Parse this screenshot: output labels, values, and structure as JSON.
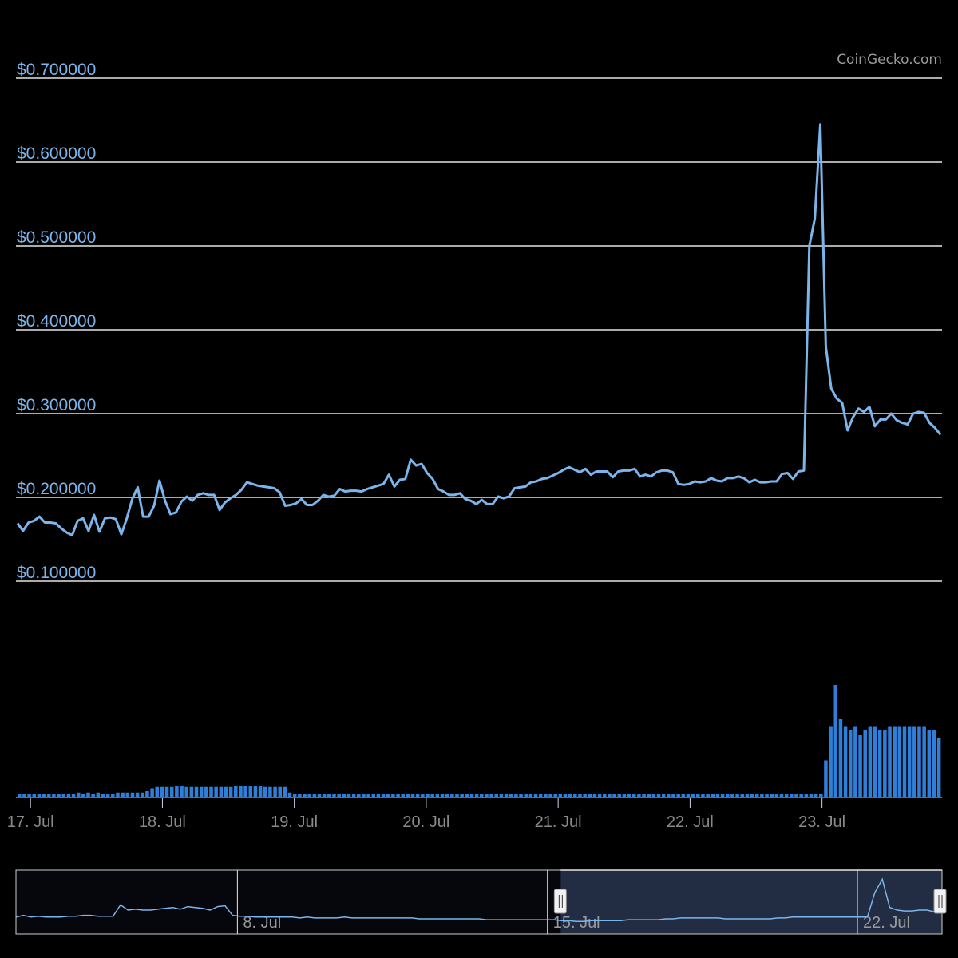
{
  "credit": "CoinGecko.com",
  "chart_data": {
    "type": "line",
    "subtype": "price-with-volume-and-navigator",
    "y_axis": {
      "ticks": [
        "$0.100000",
        "$0.200000",
        "$0.300000",
        "$0.400000",
        "$0.500000",
        "$0.600000",
        "$0.700000"
      ],
      "tick_values": [
        0.1,
        0.2,
        0.3,
        0.4,
        0.5,
        0.6,
        0.7
      ],
      "ylim": [
        0.1,
        0.7
      ],
      "grid": true
    },
    "x_axis": {
      "ticks": [
        "17. Jul",
        "18. Jul",
        "19. Jul",
        "20. Jul",
        "21. Jul",
        "22. Jul",
        "23. Jul"
      ],
      "tick_positions_days": [
        0,
        1,
        2,
        3,
        4,
        5,
        6
      ],
      "xlim_days": [
        -0.11,
        6.91
      ]
    },
    "price_series": {
      "name": "",
      "color": "#7cb5ec",
      "step_days": 0.04166,
      "start_day": -0.11,
      "values": [
        0.169,
        0.16,
        0.17,
        0.172,
        0.177,
        0.17,
        0.17,
        0.169,
        0.163,
        0.158,
        0.155,
        0.172,
        0.175,
        0.16,
        0.179,
        0.159,
        0.175,
        0.176,
        0.174,
        0.156,
        0.175,
        0.198,
        0.212,
        0.177,
        0.177,
        0.19,
        0.22,
        0.196,
        0.18,
        0.182,
        0.195,
        0.201,
        0.196,
        0.203,
        0.205,
        0.203,
        0.203,
        0.185,
        0.194,
        0.199,
        0.203,
        0.209,
        0.218,
        0.216,
        0.214,
        0.213,
        0.212,
        0.211,
        0.206,
        0.19,
        0.191,
        0.193,
        0.198,
        0.191,
        0.191,
        0.196,
        0.203,
        0.201,
        0.202,
        0.21,
        0.207,
        0.208,
        0.208,
        0.207,
        0.21,
        0.212,
        0.214,
        0.216,
        0.227,
        0.213,
        0.221,
        0.222,
        0.245,
        0.238,
        0.24,
        0.229,
        0.222,
        0.21,
        0.207,
        0.203,
        0.203,
        0.205,
        0.198,
        0.196,
        0.192,
        0.197,
        0.192,
        0.192,
        0.201,
        0.199,
        0.201,
        0.211,
        0.212,
        0.213,
        0.218,
        0.219,
        0.222,
        0.223,
        0.226,
        0.229,
        0.233,
        0.236,
        0.233,
        0.23,
        0.234,
        0.227,
        0.231,
        0.231,
        0.231,
        0.224,
        0.231,
        0.232,
        0.232,
        0.234,
        0.225,
        0.227,
        0.225,
        0.23,
        0.232,
        0.232,
        0.23,
        0.216,
        0.215,
        0.216,
        0.219,
        0.218,
        0.219,
        0.223,
        0.22,
        0.219,
        0.223,
        0.223,
        0.225,
        0.223,
        0.218,
        0.221,
        0.218,
        0.218,
        0.219,
        0.219,
        0.228,
        0.229,
        0.222,
        0.231,
        0.232,
        0.5,
        0.533,
        0.645,
        0.38,
        0.33,
        0.318,
        0.313,
        0.28,
        0.296,
        0.306,
        0.302,
        0.308,
        0.285,
        0.293,
        0.293,
        0.3,
        0.292,
        0.289,
        0.287,
        0.3,
        0.302,
        0.301,
        0.289,
        0.283,
        0.275
      ]
    },
    "volume_series": {
      "name": "",
      "color": "#2f7ed8",
      "values": [
        1,
        1,
        1,
        1,
        1,
        1,
        1,
        1,
        1,
        1,
        1,
        1,
        1.5,
        1,
        1.5,
        1,
        1.5,
        1,
        1,
        1,
        1.5,
        1.5,
        1.5,
        1.5,
        1.5,
        1.5,
        2,
        3,
        3.5,
        3.5,
        3.5,
        3.5,
        4,
        4,
        3.5,
        3.5,
        3.5,
        3.5,
        3.5,
        3.5,
        3.5,
        3.5,
        3.5,
        3.5,
        4,
        4,
        4,
        4,
        4,
        4,
        3.5,
        3.5,
        3.5,
        3.5,
        3.5,
        1.5,
        1,
        1,
        1,
        1,
        1,
        1,
        1,
        1,
        1,
        1,
        1,
        1,
        1,
        1,
        1,
        1,
        1,
        1,
        1,
        1,
        1,
        1,
        1,
        1,
        1,
        1,
        1,
        1,
        1,
        1,
        1,
        1,
        1,
        1,
        1,
        1,
        1,
        1,
        1,
        1,
        1,
        1,
        1,
        1,
        1,
        1,
        1,
        1,
        1,
        1,
        1,
        1,
        1,
        1,
        1,
        1,
        1,
        1,
        1,
        1,
        1,
        1,
        1,
        1,
        1,
        1,
        1,
        1,
        1,
        1,
        1,
        1,
        1,
        1,
        1,
        1,
        1,
        1,
        1,
        1,
        1,
        1,
        1,
        1,
        1,
        1,
        1,
        1,
        1,
        1,
        1,
        1,
        1,
        1,
        1,
        1,
        1,
        1,
        1,
        1,
        1,
        1,
        1,
        1,
        1,
        1,
        1,
        1,
        13,
        25,
        40,
        28,
        25,
        24,
        25,
        22,
        24,
        25,
        25,
        24,
        24,
        25,
        25,
        25,
        25,
        25,
        25,
        25,
        25,
        24,
        24,
        21
      ]
    },
    "volume_max": 40,
    "navigator": {
      "labels": [
        "8. Jul",
        "15. Jul",
        "22. Jul"
      ],
      "label_days": [
        -9,
        -2,
        5
      ],
      "xlim_days": [
        -14,
        6.91
      ],
      "selection_days": [
        -1.7,
        6.91
      ],
      "series_values": [
        0.22,
        0.24,
        0.22,
        0.23,
        0.22,
        0.22,
        0.22,
        0.23,
        0.23,
        0.24,
        0.24,
        0.23,
        0.23,
        0.23,
        0.36,
        0.3,
        0.31,
        0.3,
        0.3,
        0.31,
        0.32,
        0.33,
        0.31,
        0.34,
        0.33,
        0.32,
        0.3,
        0.34,
        0.35,
        0.24,
        0.23,
        0.23,
        0.22,
        0.22,
        0.22,
        0.22,
        0.22,
        0.22,
        0.21,
        0.22,
        0.21,
        0.21,
        0.21,
        0.21,
        0.22,
        0.21,
        0.21,
        0.21,
        0.21,
        0.21,
        0.21,
        0.21,
        0.21,
        0.21,
        0.2,
        0.2,
        0.2,
        0.2,
        0.2,
        0.2,
        0.2,
        0.2,
        0.2,
        0.19,
        0.19,
        0.19,
        0.19,
        0.19,
        0.19,
        0.19,
        0.19,
        0.19,
        0.19,
        0.18,
        0.18,
        0.17,
        0.17,
        0.18,
        0.18,
        0.18,
        0.18,
        0.18,
        0.19,
        0.19,
        0.19,
        0.19,
        0.19,
        0.2,
        0.2,
        0.21,
        0.21,
        0.21,
        0.21,
        0.21,
        0.21,
        0.2,
        0.2,
        0.2,
        0.2,
        0.2,
        0.2,
        0.2,
        0.21,
        0.21,
        0.22,
        0.22,
        0.22,
        0.22,
        0.22,
        0.22,
        0.22,
        0.22,
        0.22,
        0.22,
        0.22,
        0.5,
        0.65,
        0.33,
        0.3,
        0.29,
        0.29,
        0.3,
        0.3,
        0.28,
        0.275
      ]
    }
  }
}
